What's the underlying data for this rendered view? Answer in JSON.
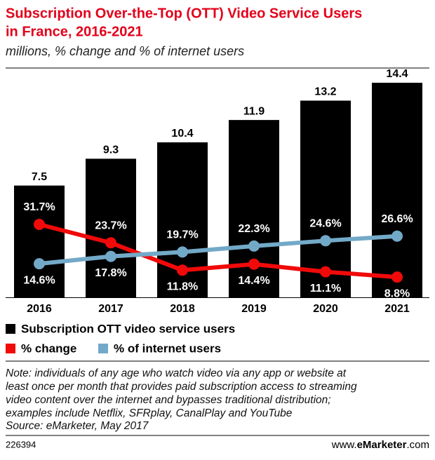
{
  "chart_data": {
    "type": "bar",
    "title_lines": [
      "Subscription Over-the-Top (OTT) Video Service Users",
      "in France, 2016-2021"
    ],
    "subtitle": "millions, % change and % of internet users",
    "categories": [
      "2016",
      "2017",
      "2018",
      "2019",
      "2020",
      "2021"
    ],
    "bar_series": {
      "name": "Subscription OTT video service users",
      "color": "#000000",
      "values": [
        7.5,
        9.3,
        10.4,
        11.9,
        13.2,
        14.4
      ]
    },
    "series": [
      {
        "name": "% change",
        "color": "#f00a0a",
        "values": [
          31.7,
          23.7,
          11.8,
          14.4,
          11.1,
          8.8
        ],
        "value_labels": [
          "31.7%",
          "23.7%",
          "11.8%",
          "14.4%",
          "11.1%",
          "8.8%"
        ]
      },
      {
        "name": "% of internet users",
        "color": "#73a9c8",
        "values": [
          14.6,
          17.8,
          19.7,
          22.3,
          24.6,
          26.6
        ],
        "value_labels": [
          "14.6%",
          "17.8%",
          "19.7%",
          "22.3%",
          "24.6%",
          "26.6%"
        ]
      }
    ],
    "note_lines": [
      "Note: individuals of any age who watch video via any app or website at",
      "least once per month that provides paid subscription access to streaming",
      "video content over the internet and bypasses traditional distribution;",
      "examples include Netflix, SFRplay, CanalPlay and YouTube"
    ],
    "source": "Source: eMarketer, May 2017",
    "chart_id": "226394",
    "website": [
      "www.",
      "eMarketer",
      ".com"
    ]
  }
}
